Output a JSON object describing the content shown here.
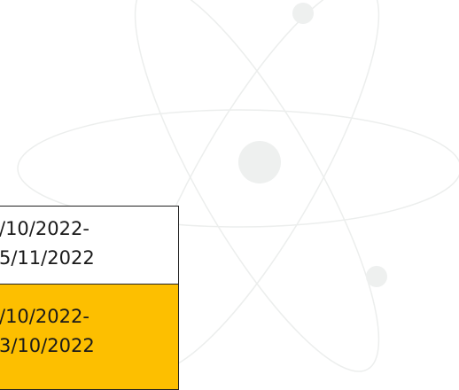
{
  "table": {
    "rows": [
      [
        "/10/2022-",
        "5/11/2022"
      ],
      [
        "/10/2022-",
        "3/10/2022"
      ]
    ]
  }
}
